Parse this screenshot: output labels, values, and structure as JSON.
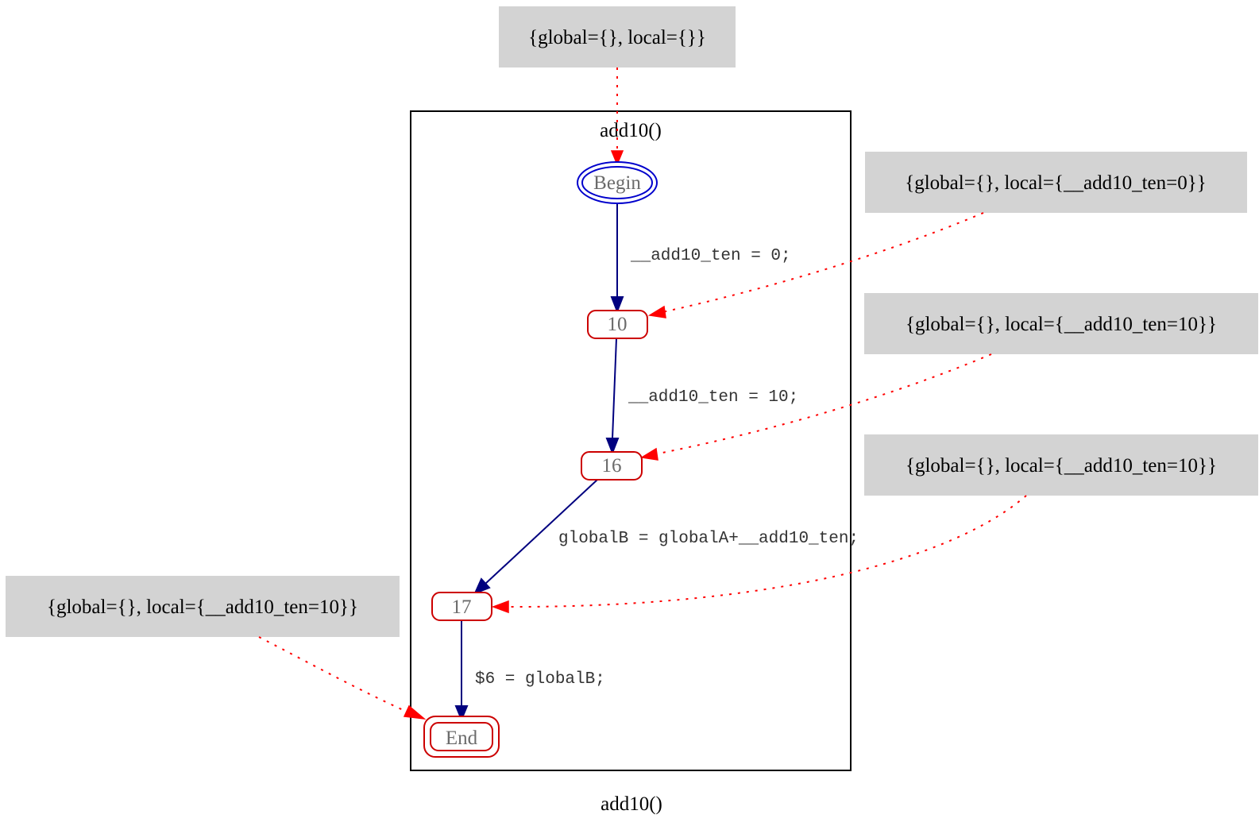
{
  "diagram": {
    "cluster_label": "add10()",
    "graph_label": "add10()",
    "nodes": {
      "begin": "Begin",
      "n10": "10",
      "n16": "16",
      "n17": "17",
      "end": "End"
    },
    "edges": {
      "begin_to_10": "__add10_ten = 0;",
      "n10_to_16": "__add10_ten = 10;",
      "n16_to_17": "globalB = globalA+__add10_ten;",
      "n17_to_end": "$6 = globalB;"
    },
    "states": {
      "top": "{global={}, local={}}",
      "s10": "{global={}, local={__add10_ten=0}}",
      "s16": "{global={}, local={__add10_ten=10}}",
      "s17": "{global={}, local={__add10_ten=10}}",
      "send": "{global={}, local={__add10_ten=10}}"
    },
    "colors": {
      "flow_edge": "#00007f",
      "state_edge": "#ff0000",
      "begin_node": "#0000cc",
      "node_border": "#cc0000",
      "state_box": "#d3d3d3"
    }
  }
}
